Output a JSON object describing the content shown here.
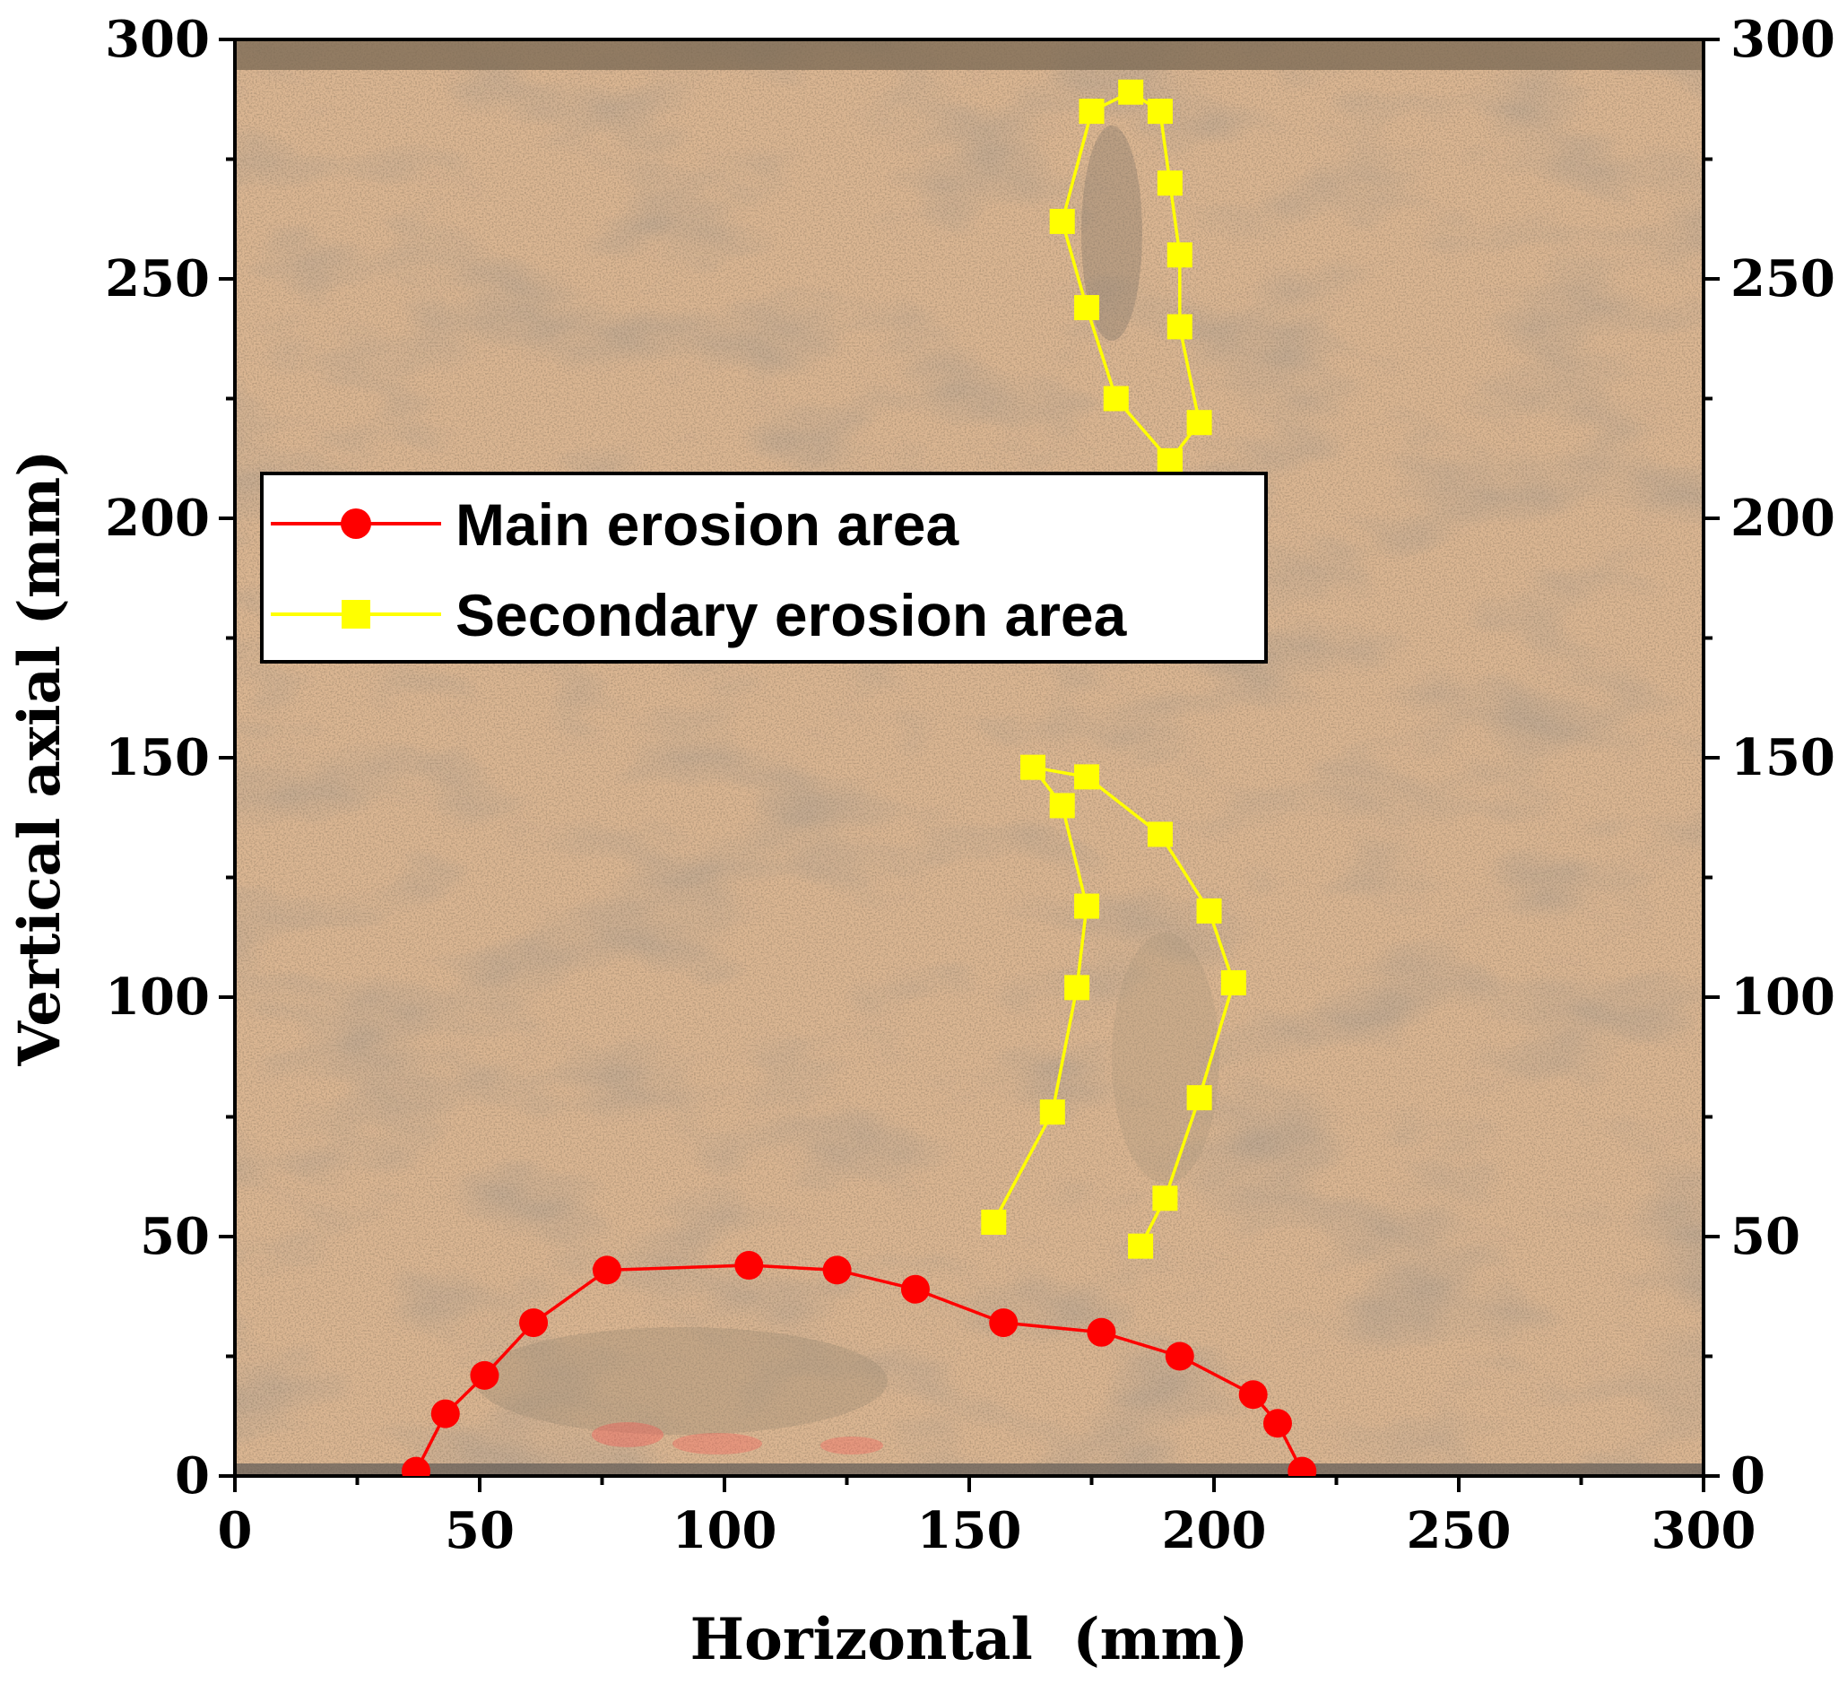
{
  "chart_data": {
    "type": "line",
    "xlabel": "Horizontal  (mm)",
    "ylabel": "Vertical axial (mm)",
    "xlim": [
      0,
      300
    ],
    "ylim": [
      0,
      300
    ],
    "x_ticks": [
      "0",
      "50",
      "100",
      "150",
      "200",
      "250",
      "300"
    ],
    "y_ticks": [
      "0",
      "50",
      "100",
      "150",
      "200",
      "250",
      "300"
    ],
    "y_ticks_right": [
      "0",
      "50",
      "100",
      "150",
      "200",
      "250",
      "300"
    ],
    "background": "photograph of sand erosion test box",
    "legend": {
      "placement": "upper-left"
    },
    "series": [
      {
        "name": "Main erosion area",
        "color": "#ff0000",
        "marker": "circle",
        "segments": [
          [
            [
              37,
              1
            ],
            [
              43,
              13
            ],
            [
              51,
              21
            ],
            [
              61,
              32
            ],
            [
              76,
              43
            ],
            [
              105,
              44
            ],
            [
              123,
              43
            ],
            [
              139,
              39
            ],
            [
              157,
              32
            ],
            [
              177,
              30
            ],
            [
              193,
              25
            ],
            [
              208,
              17
            ],
            [
              213,
              11
            ],
            [
              218,
              1
            ]
          ]
        ]
      },
      {
        "name": "Secondary erosion area",
        "color": "#ffff00",
        "marker": "square",
        "segments": [
          [
            [
              191,
              212
            ],
            [
              197,
              220
            ],
            [
              193,
              240
            ],
            [
              193,
              255
            ],
            [
              191,
              270
            ],
            [
              189,
              285
            ],
            [
              183,
              289
            ],
            [
              175,
              285
            ],
            [
              169,
              262
            ],
            [
              174,
              244
            ],
            [
              180,
              225
            ],
            [
              191,
              212
            ]
          ],
          [
            [
              155,
              53
            ],
            [
              167,
              76
            ],
            [
              172,
              102
            ],
            [
              174,
              119
            ],
            [
              169,
              140
            ],
            [
              163,
              148
            ],
            [
              174,
              146
            ],
            [
              189,
              134
            ],
            [
              199,
              118
            ],
            [
              204,
              103
            ],
            [
              197,
              79
            ],
            [
              190,
              58
            ],
            [
              185,
              48
            ]
          ]
        ]
      }
    ]
  }
}
